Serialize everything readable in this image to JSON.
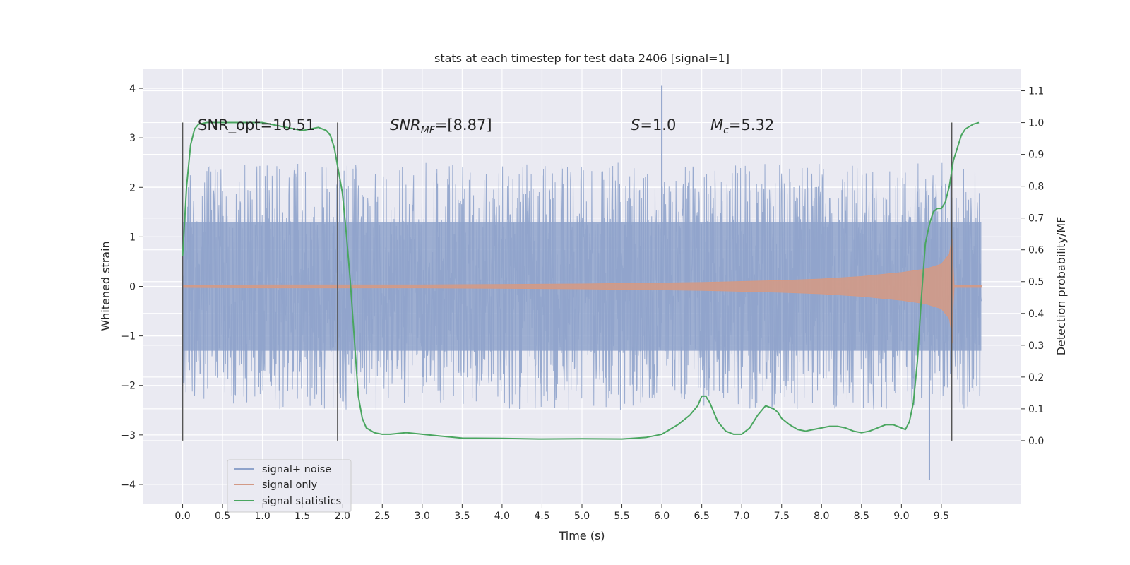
{
  "chart_data": {
    "type": "line",
    "title": "stats at each timestep for test data 2406 [signal=1]",
    "xlabel": "Time (s)",
    "ylabel_left": "Whitened strain",
    "ylabel_right": "Detection probability/MF",
    "xlim": [
      -0.5,
      10.5
    ],
    "ylim_left": [
      -4.4,
      4.4
    ],
    "ylim_right": [
      -0.2,
      1.17
    ],
    "xticks": [
      "0.0",
      "0.5",
      "1.0",
      "1.5",
      "2.0",
      "2.5",
      "3.0",
      "3.5",
      "4.0",
      "4.5",
      "5.0",
      "5.5",
      "6.0",
      "6.5",
      "7.0",
      "7.5",
      "8.0",
      "8.5",
      "9.0",
      "9.5"
    ],
    "yticks_left": [
      "4",
      "3",
      "2",
      "1",
      "0",
      "−1",
      "−2",
      "−3",
      "−4"
    ],
    "yticks_right": [
      "1.1",
      "1.0",
      "0.9",
      "0.8",
      "0.7",
      "0.6",
      "0.5",
      "0.4",
      "0.3",
      "0.2",
      "0.1",
      "0.0"
    ],
    "grid": true,
    "annotations": {
      "snr_opt": "SNR_opt=10.51",
      "snr_mf_base": "SNR",
      "snr_mf_sub": "MF",
      "snr_mf_value": "=[8.87]",
      "s_base": "S",
      "s_value": "=1.0",
      "mc_base": "M",
      "mc_sub": "c",
      "mc_value": "=5.32"
    },
    "vertical_lines_x": [
      0.0,
      1.94,
      9.63
    ],
    "legend": {
      "position": "lower-left",
      "entries": [
        "signal+ noise",
        "signal only",
        "signal statistics"
      ]
    },
    "colors": {
      "noise": "#8fa3cb",
      "signal": "#d39a86",
      "stats": "#4aa660",
      "vline": "#555555",
      "background": "#eaeaf2"
    },
    "series": [
      {
        "name": "signal statistics",
        "axis": "right",
        "x": [
          0.0,
          0.05,
          0.1,
          0.15,
          0.2,
          0.3,
          0.5,
          0.8,
          1.0,
          1.2,
          1.4,
          1.5,
          1.6,
          1.7,
          1.8,
          1.85,
          1.9,
          1.95,
          2.0,
          2.05,
          2.1,
          2.15,
          2.2,
          2.25,
          2.3,
          2.4,
          2.5,
          2.6,
          2.8,
          3.0,
          3.2,
          3.5,
          4.0,
          4.5,
          5.0,
          5.5,
          5.8,
          6.0,
          6.2,
          6.35,
          6.45,
          6.5,
          6.55,
          6.6,
          6.65,
          6.7,
          6.8,
          6.9,
          7.0,
          7.1,
          7.2,
          7.3,
          7.4,
          7.45,
          7.5,
          7.6,
          7.7,
          7.8,
          7.9,
          8.0,
          8.1,
          8.2,
          8.3,
          8.4,
          8.5,
          8.6,
          8.7,
          8.8,
          8.9,
          9.0,
          9.05,
          9.1,
          9.15,
          9.2,
          9.25,
          9.3,
          9.35,
          9.4,
          9.45,
          9.5,
          9.55,
          9.6,
          9.65,
          9.7,
          9.75,
          9.8,
          9.9,
          9.97
        ],
        "y": [
          0.58,
          0.8,
          0.93,
          0.98,
          0.995,
          1.0,
          1.0,
          1.0,
          1.0,
          0.99,
          0.98,
          0.975,
          0.98,
          0.985,
          0.975,
          0.96,
          0.92,
          0.85,
          0.78,
          0.65,
          0.5,
          0.32,
          0.14,
          0.07,
          0.04,
          0.025,
          0.02,
          0.02,
          0.025,
          0.02,
          0.015,
          0.008,
          0.007,
          0.005,
          0.006,
          0.005,
          0.01,
          0.02,
          0.05,
          0.08,
          0.11,
          0.14,
          0.14,
          0.12,
          0.09,
          0.06,
          0.03,
          0.02,
          0.02,
          0.04,
          0.08,
          0.11,
          0.1,
          0.09,
          0.07,
          0.05,
          0.035,
          0.03,
          0.035,
          0.04,
          0.045,
          0.045,
          0.04,
          0.03,
          0.025,
          0.03,
          0.04,
          0.05,
          0.05,
          0.04,
          0.035,
          0.06,
          0.12,
          0.25,
          0.45,
          0.62,
          0.68,
          0.72,
          0.73,
          0.73,
          0.75,
          0.8,
          0.88,
          0.92,
          0.96,
          0.98,
          0.995,
          1.0
        ]
      },
      {
        "name": "signal only",
        "axis": "left",
        "x": [
          0.0,
          1.0,
          2.0,
          3.0,
          4.0,
          5.0,
          6.0,
          6.5,
          7.0,
          7.5,
          8.0,
          8.5,
          9.0,
          9.3,
          9.5,
          9.6,
          9.63,
          9.66,
          10.0
        ],
        "envelope": [
          0.02,
          0.03,
          0.03,
          0.03,
          0.04,
          0.05,
          0.07,
          0.08,
          0.1,
          0.12,
          0.15,
          0.2,
          0.28,
          0.35,
          0.45,
          0.65,
          0.95,
          0.02,
          0.02
        ]
      },
      {
        "name": "signal+ noise",
        "axis": "left",
        "x_range": [
          0.0,
          10.0
        ],
        "band_sigma": 1.3,
        "extremes": [
          4.05,
          -3.9
        ]
      }
    ]
  }
}
